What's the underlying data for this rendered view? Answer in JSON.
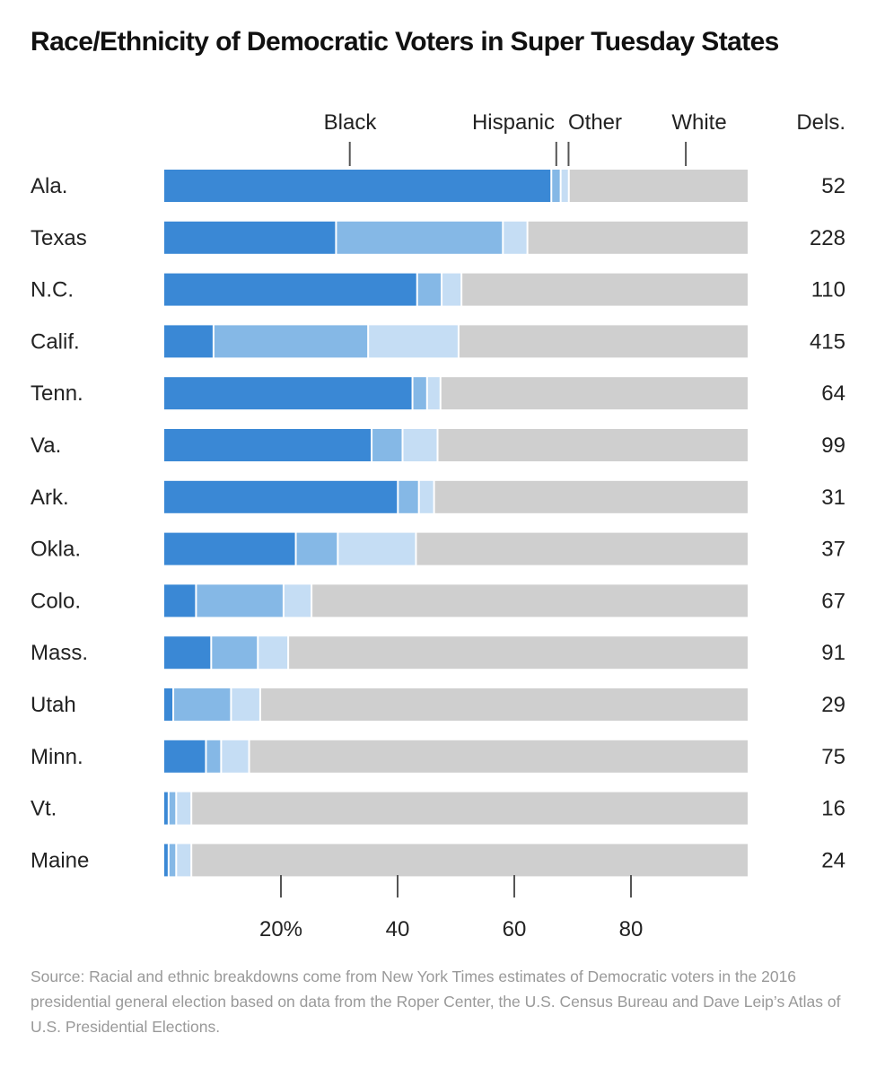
{
  "title": "Race/Ethnicity of Democratic Voters in Super Tuesday States",
  "source": "Source: Racial and ethnic breakdowns come from New York Times estimates of Democratic voters in the 2016 presidential general election based on data from the Roper Center, the U.S. Census Bureau and Dave Leip’s Atlas of U.S. Presidential Elections.",
  "colors": {
    "Black": "#3a88d5",
    "Hispanic": "#85b8e6",
    "Other": "#c5ddf4",
    "White": "#cfcfcf"
  },
  "chart_data": {
    "type": "bar",
    "orientation": "horizontal",
    "stacked": true,
    "title": "Race/Ethnicity of Democratic Voters in Super Tuesday States",
    "categories": [
      "Ala.",
      "Texas",
      "N.C.",
      "Calif.",
      "Tenn.",
      "Va.",
      "Ark.",
      "Okla.",
      "Colo.",
      "Mass.",
      "Utah",
      "Minn.",
      "Vt.",
      "Maine"
    ],
    "series": [
      {
        "name": "Black",
        "values": [
          66.5,
          29.6,
          43.5,
          8.6,
          42.7,
          35.7,
          40.2,
          22.7,
          5.6,
          8.2,
          1.7,
          7.3,
          0.9,
          0.9
        ]
      },
      {
        "name": "Hispanic",
        "values": [
          1.6,
          28.6,
          4.2,
          26.5,
          2.5,
          5.3,
          3.6,
          7.2,
          15.0,
          8.0,
          9.9,
          2.6,
          1.3,
          1.3
        ]
      },
      {
        "name": "Other",
        "values": [
          1.4,
          4.2,
          3.4,
          15.5,
          2.3,
          6.0,
          2.6,
          13.4,
          4.8,
          5.2,
          5.0,
          4.8,
          2.6,
          2.6
        ]
      },
      {
        "name": "White",
        "values": [
          30.5,
          37.6,
          48.9,
          49.4,
          52.5,
          53.0,
          53.6,
          56.7,
          74.6,
          78.6,
          83.4,
          85.3,
          95.2,
          95.2
        ]
      }
    ],
    "series_labels": [
      "Black",
      "Hispanic",
      "Other",
      "White"
    ],
    "series_label_refs": [
      31.8,
      67.2,
      69.3,
      89.4
    ],
    "delegates_header": "Dels.",
    "delegates": [
      "52",
      "228",
      "110",
      "415",
      "64",
      "99",
      "31",
      "37",
      "67",
      "91",
      "29",
      "75",
      "16",
      "24"
    ],
    "xticks": [
      20,
      40,
      60,
      80
    ],
    "xtick_labels": [
      "20%",
      "40",
      "60",
      "80"
    ],
    "xlim": [
      0,
      100
    ],
    "grid": false,
    "legend": "direct labels above first bar"
  }
}
